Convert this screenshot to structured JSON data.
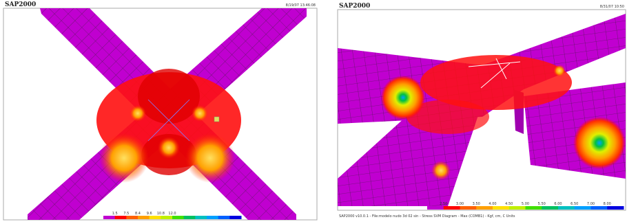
{
  "left": {
    "title": "SAP2000",
    "timestamp": "8/19/07 13:46:08",
    "legend_labels": [
      "1.5",
      "7.5",
      "8.4",
      "9.6",
      "10.8",
      "12.0"
    ]
  },
  "right": {
    "title": "SAP2000",
    "timestamp": "8/31/07 10:50",
    "legend_labels": [
      "2.50",
      "3.00",
      "3.50",
      "4.00",
      "4.50",
      "5.00",
      "5.50",
      "6.00",
      "6.50",
      "7.00",
      "8.00"
    ],
    "status": "SAP2000 v10.0.1 - File:modelo nudo 3d 02 sin - Stress SVM Diagram - Max (COMB1) - Kgf, cm, C Units"
  }
}
